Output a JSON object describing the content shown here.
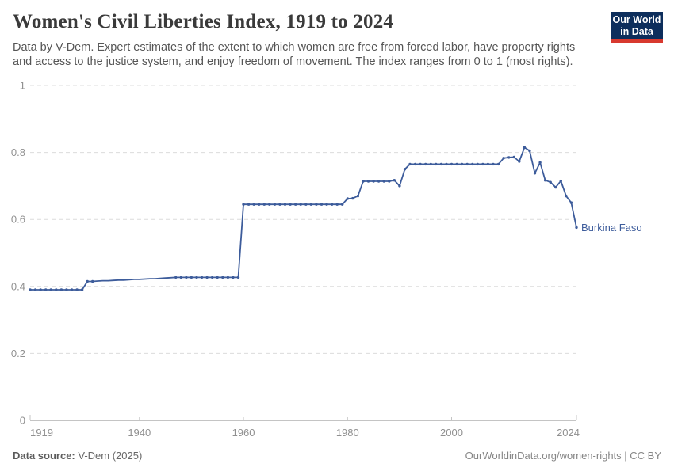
{
  "header": {
    "title": "Women's Civil Liberties Index, 1919 to 2024",
    "subtitle_line1": "Data by V-Dem. Expert estimates of the extent to which women are free from forced labor, have property rights",
    "subtitle_line2": "and access to the justice system, and enjoy freedom of movement. The index ranges from 0 to 1 (most rights)."
  },
  "logo": {
    "line1": "Our World",
    "line2": "in Data",
    "bg_color": "#0d2e5c",
    "bar_color": "#d8392f"
  },
  "footer": {
    "source_label": "Data source:",
    "source_value": "V-Dem (2025)",
    "citation": "OurWorldinData.org/women-rights | CC BY"
  },
  "chart_data": {
    "type": "line",
    "title": "Women's Civil Liberties Index, 1919 to 2024",
    "xlabel": "",
    "ylabel": "",
    "xlim": [
      1919,
      2024
    ],
    "ylim": [
      0,
      1
    ],
    "xticks": [
      1919,
      1940,
      1960,
      1980,
      2000,
      2024
    ],
    "xtick_labels": [
      "1919",
      "1940",
      "1960",
      "1980",
      "2000",
      "2024"
    ],
    "yticks": [
      0,
      0.2,
      0.4,
      0.6,
      0.8,
      1
    ],
    "ytick_labels": [
      "0",
      "0.2",
      "0.4",
      "0.6",
      "0.8",
      "1"
    ],
    "grid": "horizontal-dashed",
    "legend": "end-of-line-label",
    "line_color": "#3d5c9b",
    "grid_color": "#dcdcdc",
    "axis_color": "#c4c4c4",
    "tick_text_color": "#909090",
    "series": [
      {
        "name": "Burkina Faso",
        "start_year": 1919,
        "values": [
          0.39,
          0.39,
          0.39,
          0.39,
          0.39,
          0.39,
          0.39,
          0.39,
          0.39,
          0.39,
          0.39,
          0.415,
          0.415,
          0.416,
          0.417,
          0.417,
          0.418,
          0.419,
          0.419,
          0.42,
          0.421,
          0.421,
          0.422,
          0.423,
          0.423,
          0.424,
          0.425,
          0.426,
          0.427,
          0.427,
          0.427,
          0.427,
          0.427,
          0.427,
          0.427,
          0.427,
          0.427,
          0.427,
          0.427,
          0.427,
          0.427,
          0.645,
          0.645,
          0.645,
          0.645,
          0.645,
          0.645,
          0.645,
          0.645,
          0.645,
          0.645,
          0.645,
          0.645,
          0.645,
          0.645,
          0.645,
          0.645,
          0.645,
          0.645,
          0.645,
          0.645,
          0.662,
          0.663,
          0.67,
          0.714,
          0.714,
          0.714,
          0.714,
          0.714,
          0.714,
          0.717,
          0.7,
          0.75,
          0.765,
          0.765,
          0.765,
          0.765,
          0.765,
          0.765,
          0.765,
          0.765,
          0.765,
          0.765,
          0.765,
          0.765,
          0.765,
          0.765,
          0.765,
          0.765,
          0.765,
          0.765,
          0.783,
          0.785,
          0.786,
          0.773,
          0.815,
          0.805,
          0.738,
          0.77,
          0.717,
          0.711,
          0.696,
          0.715,
          0.67,
          0.65,
          0.576
        ],
        "dot_gap_years": [
          1932,
          1946
        ]
      }
    ]
  }
}
